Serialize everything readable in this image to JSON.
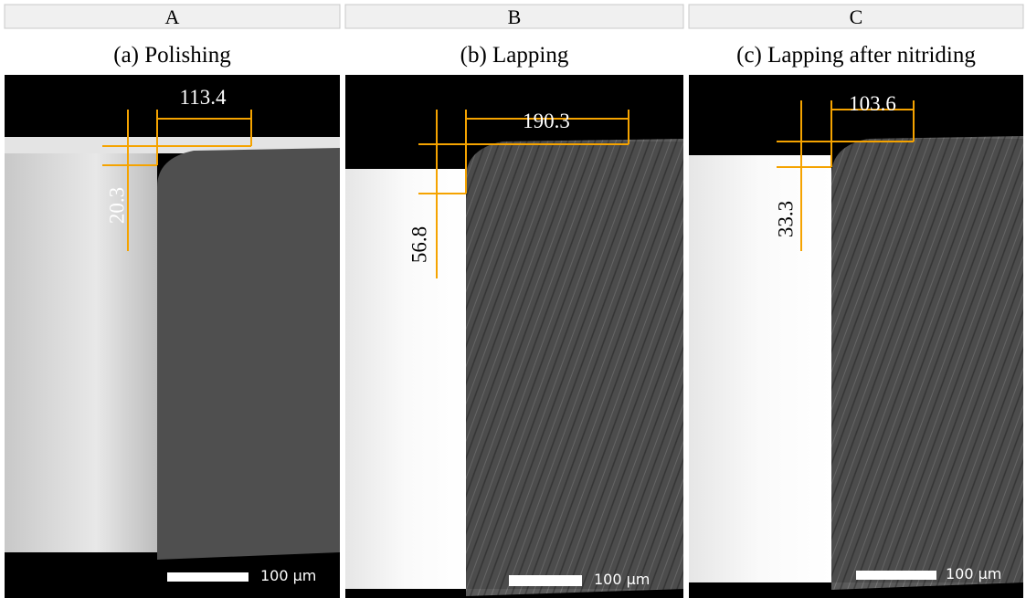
{
  "panels": [
    {
      "column": "A",
      "caption": "(a) Polishing",
      "width_label": "113.4",
      "height_label": "20.3",
      "scale_label": "100 µm"
    },
    {
      "column": "B",
      "caption": "(b) Lapping",
      "width_label": "190.3",
      "height_label": "56.8",
      "scale_label": "100 µm"
    },
    {
      "column": "C",
      "caption": "(c) Lapping after nitriding",
      "width_label": "103.6",
      "height_label": "33.3",
      "scale_label": "100 µm"
    }
  ]
}
